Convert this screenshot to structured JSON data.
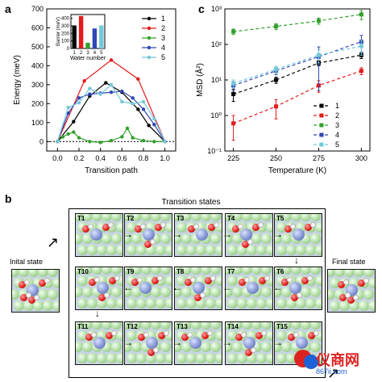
{
  "panels": {
    "a": "a",
    "b": "b",
    "c": "c"
  },
  "panel_a": {
    "ylabel": "Energy (meV)",
    "xlabel": "Transition path",
    "legend": [
      "1",
      "2",
      "3",
      "4",
      "5"
    ],
    "inset": {
      "ylabel": "Barrier (meV)",
      "xlabel": "Water number"
    }
  },
  "panel_c": {
    "ylabel": "MSD (Å²)",
    "xlabel": "Temperature (K)",
    "legend": [
      "1",
      "2",
      "3",
      "4",
      "5"
    ]
  },
  "panel_b": {
    "title": "Transition states",
    "initial_label": "Inital state",
    "final_label": "Final state",
    "tiles": [
      "T1",
      "T2",
      "T3",
      "T4",
      "T5",
      "T10",
      "T9",
      "T8",
      "T7",
      "T6",
      "T11",
      "T12",
      "T13",
      "T14",
      "T15"
    ]
  },
  "watermark": {
    "brand": "仪商网",
    "url": "867ii.com"
  },
  "chart_data": [
    {
      "type": "line",
      "xlabel": "Transition path",
      "ylabel": "Energy (meV)",
      "xlim": [
        -0.1,
        1.1
      ],
      "ylim": [
        -50,
        700
      ],
      "x_ticks": [
        0.0,
        0.2,
        0.4,
        0.6,
        0.8,
        1.0
      ],
      "y_ticks": [
        0,
        100,
        200,
        300,
        400,
        500,
        600,
        700
      ],
      "legend_placement": "top-right",
      "series": [
        {
          "name": "1",
          "color": "#000000",
          "x": [
            0.0,
            0.15,
            0.3,
            0.45,
            0.6,
            0.75,
            0.85,
            1.0
          ],
          "y": [
            0,
            105,
            240,
            310,
            260,
            170,
            85,
            0
          ]
        },
        {
          "name": "2",
          "color": "#e41a1c",
          "x": [
            0.0,
            0.25,
            0.5,
            0.75,
            1.0
          ],
          "y": [
            0,
            320,
            430,
            330,
            0
          ]
        },
        {
          "name": "3",
          "color": "#33a02c",
          "x": [
            0.0,
            0.05,
            0.1,
            0.15,
            0.2,
            0.3,
            0.4,
            0.5,
            0.6,
            0.65,
            0.7,
            0.8,
            0.9,
            1.0
          ],
          "y": [
            0,
            25,
            40,
            50,
            20,
            0,
            -5,
            5,
            25,
            70,
            20,
            5,
            0,
            0
          ]
        },
        {
          "name": "4",
          "color": "#2f46b5",
          "x": [
            0.0,
            0.1,
            0.2,
            0.3,
            0.4,
            0.5,
            0.6,
            0.7,
            0.8,
            0.9,
            1.0
          ],
          "y": [
            0,
            150,
            230,
            250,
            255,
            260,
            265,
            230,
            170,
            90,
            0
          ]
        },
        {
          "name": "5",
          "color": "#74c8d8",
          "x": [
            0.0,
            0.1,
            0.2,
            0.3,
            0.4,
            0.5,
            0.6,
            0.7,
            0.8,
            0.9,
            1.0
          ],
          "y": [
            0,
            180,
            205,
            280,
            250,
            300,
            210,
            200,
            210,
            120,
            0
          ]
        }
      ]
    },
    {
      "type": "bar",
      "title": "",
      "xlabel": "Water number",
      "ylabel": "Barrier (meV)",
      "categories": [
        "1",
        "2",
        "3",
        "4",
        "5"
      ],
      "values": [
        305,
        430,
        75,
        265,
        305
      ],
      "colors": [
        "#000000",
        "#e41a1c",
        "#33a02c",
        "#2f46b5",
        "#74c8d8"
      ],
      "ylim": [
        0,
        450
      ],
      "y_ticks": [
        0,
        100,
        200,
        300,
        400
      ]
    },
    {
      "type": "line",
      "xlabel": "Temperature (K)",
      "ylabel": "MSD (Å²)",
      "scale_y": "log",
      "xlim": [
        220,
        305
      ],
      "ylim": [
        0.1,
        1000
      ],
      "x_ticks": [
        225,
        250,
        275,
        300
      ],
      "y_ticks": [
        0.1,
        1,
        10,
        100,
        1000
      ],
      "legend_placement": "bottom-right",
      "series": [
        {
          "name": "1",
          "color": "#000000",
          "x": [
            225,
            250,
            275,
            300
          ],
          "y": [
            4,
            10,
            30,
            50
          ],
          "err": [
            1.5,
            2.0,
            5.0,
            10.0
          ]
        },
        {
          "name": "2",
          "color": "#e41a1c",
          "x": [
            225,
            250,
            275,
            300
          ],
          "y": [
            0.6,
            1.8,
            7,
            18
          ],
          "err": [
            0.4,
            1.0,
            2.5,
            4.0
          ]
        },
        {
          "name": "3",
          "color": "#33a02c",
          "x": [
            225,
            250,
            275,
            300
          ],
          "y": [
            230,
            320,
            460,
            700
          ],
          "err": [
            40.0,
            60.0,
            90.0,
            200.0
          ]
        },
        {
          "name": "4",
          "color": "#2f46b5",
          "x": [
            225,
            250,
            275,
            300
          ],
          "y": [
            7,
            18,
            45,
            120
          ],
          "err": [
            2.0,
            4.0,
            40.0,
            60.0
          ]
        },
        {
          "name": "5",
          "color": "#74c8d8",
          "x": [
            225,
            250,
            275,
            300
          ],
          "y": [
            8,
            20,
            50,
            90
          ],
          "err": [
            2.0,
            4.0,
            20.0,
            40.0
          ]
        }
      ]
    }
  ]
}
